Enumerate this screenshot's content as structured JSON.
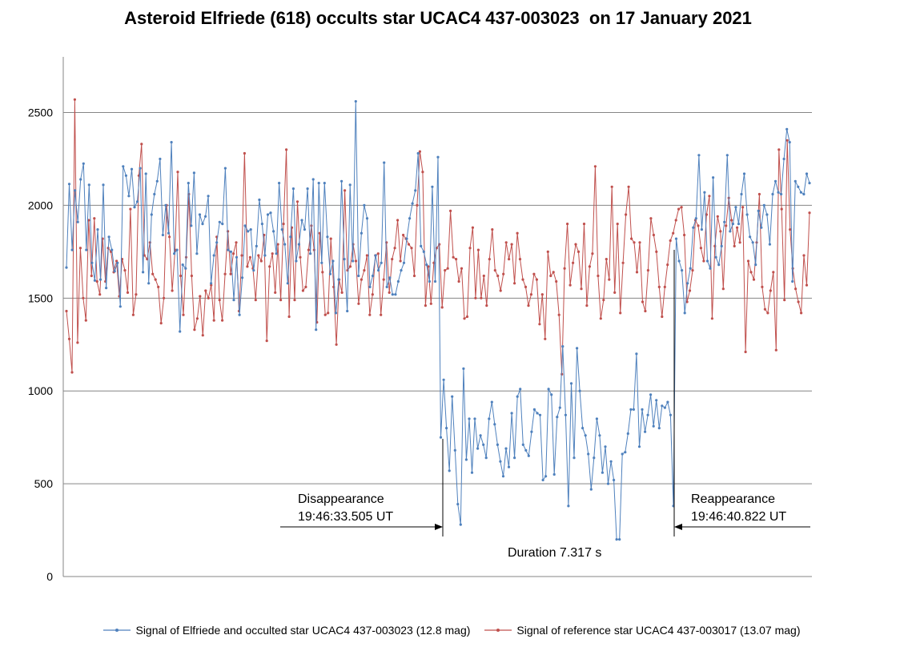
{
  "chart_data": {
    "type": "line",
    "title": "Asteroid Elfriede (618) occults star UCAC4 437-003023  on 17 January 2021",
    "xlabel": "",
    "ylabel": "",
    "ylim": [
      0,
      2800
    ],
    "yticks": [
      "0",
      "500",
      "1000",
      "1500",
      "2000",
      "2500"
    ],
    "grid": true,
    "legend_position": "bottom",
    "series": [
      {
        "name": "Signal of Elfriede and occulted star UCAC4 437-003023 (12.8 mag)",
        "color": "#4f81bd",
        "values": [
          1665,
          2115,
          1760,
          2080,
          1910,
          2140,
          2225,
          1760,
          2110,
          1690,
          1595,
          1870,
          1600,
          2110,
          1555,
          1830,
          1760,
          1645,
          1690,
          1455,
          2210,
          2160,
          2050,
          2195,
          1990,
          2020,
          2200,
          1640,
          2170,
          1580,
          1950,
          2060,
          2130,
          2250,
          1840,
          2000,
          1850,
          2340,
          1740,
          1760,
          1320,
          1680,
          1660,
          2120,
          1890,
          2175,
          1740,
          1950,
          1900,
          1940,
          2050,
          1580,
          1730,
          1800,
          1910,
          1900,
          2200,
          1760,
          1750,
          1490,
          1720,
          1410,
          1610,
          1890,
          1860,
          1870,
          1650,
          1780,
          2030,
          1900,
          1730,
          1950,
          1960,
          1860,
          1740,
          2120,
          1870,
          1790,
          1580,
          1830,
          2090,
          1700,
          1790,
          1920,
          1870,
          2090,
          1740,
          2140,
          1330,
          2120,
          1690,
          2120,
          1830,
          1630,
          1700,
          1420,
          1600,
          2130,
          1710,
          1430,
          2110,
          1700,
          2560,
          1620,
          1850,
          2000,
          1930,
          1560,
          1620,
          1730,
          1650,
          1690,
          2230,
          1560,
          1610,
          1520,
          1520,
          1590,
          1650,
          1690,
          1820,
          1930,
          2010,
          2080,
          2280,
          1780,
          1750,
          1680,
          1590,
          2100,
          1590,
          2260,
          750,
          1060,
          800,
          570,
          970,
          680,
          390,
          280,
          1120,
          630,
          850,
          560,
          850,
          690,
          760,
          710,
          640,
          850,
          940,
          820,
          710,
          620,
          540,
          690,
          590,
          880,
          640,
          970,
          1010,
          710,
          680,
          650,
          780,
          900,
          880,
          870,
          520,
          540,
          1010,
          980,
          550,
          860,
          910,
          1240,
          870,
          380,
          1040,
          640,
          1230,
          1000,
          800,
          760,
          660,
          470,
          640,
          850,
          760,
          560,
          700,
          500,
          620,
          520,
          200,
          200,
          660,
          670,
          770,
          900,
          900,
          1200,
          700,
          900,
          780,
          870,
          980,
          810,
          950,
          800,
          920,
          910,
          940,
          870,
          380,
          1820,
          1700,
          1650,
          1420,
          1580,
          1660,
          1880,
          1930,
          2270,
          1870,
          2070,
          1700,
          1660,
          2150,
          1720,
          1680,
          1780,
          1910,
          2270,
          1860,
          1900,
          1990,
          1900,
          2060,
          2170,
          1950,
          1830,
          1800,
          1680,
          1970,
          1880,
          2000,
          1950,
          1790,
          2060,
          2130,
          2070,
          2060,
          2250,
          2410,
          2340,
          1590,
          2130,
          2100,
          2070,
          2060,
          2170,
          2120
        ]
      },
      {
        "name": "Signal of reference star UCAC4 437-003017 (13.07 mag)",
        "color": "#c0504d",
        "values": [
          1430,
          1280,
          1100,
          2570,
          1260,
          1770,
          1500,
          1380,
          1920,
          1620,
          1930,
          1590,
          1520,
          1820,
          1590,
          1770,
          1750,
          1640,
          1700,
          1510,
          1710,
          1650,
          1530,
          1980,
          1410,
          1520,
          2160,
          2330,
          1730,
          1710,
          1800,
          1630,
          1600,
          1560,
          1365,
          1500,
          2000,
          1830,
          1540,
          1760,
          2180,
          1620,
          1410,
          1720,
          2060,
          1620,
          1330,
          1390,
          1510,
          1300,
          1540,
          1500,
          1570,
          1380,
          1830,
          1490,
          1380,
          1630,
          1860,
          1630,
          1740,
          1800,
          1430,
          1730,
          2280,
          1670,
          1720,
          1660,
          1490,
          1730,
          1700,
          1840,
          1270,
          1670,
          1740,
          1530,
          1790,
          1490,
          1900,
          2300,
          1400,
          1880,
          1490,
          2020,
          1720,
          1540,
          1560,
          1760,
          1890,
          1760,
          1370,
          1850,
          1640,
          1410,
          1420,
          1820,
          1560,
          1250,
          1600,
          1530,
          2080,
          1650,
          1670,
          1790,
          1700,
          1470,
          1600,
          1650,
          1730,
          1410,
          1520,
          1730,
          1740,
          1410,
          1600,
          1800,
          1530,
          1710,
          1770,
          1920,
          1700,
          1840,
          1820,
          1790,
          1770,
          1620,
          2000,
          2290,
          2180,
          1460,
          1670,
          1470,
          1690,
          1770,
          1790,
          1450,
          1650,
          1660,
          1970,
          1720,
          1710,
          1590,
          1660,
          1390,
          1400,
          1770,
          1880,
          1500,
          1760,
          1500,
          1620,
          1460,
          1710,
          1870,
          1650,
          1620,
          1540,
          1630,
          1800,
          1710,
          1790,
          1580,
          1850,
          1710,
          1600,
          1560,
          1460,
          1520,
          1630,
          1600,
          1360,
          1520,
          1280,
          1750,
          1620,
          1640,
          1590,
          1410,
          1090,
          1660,
          1900,
          1570,
          1690,
          1790,
          1750,
          1550,
          1900,
          1460,
          1670,
          1740,
          2210,
          1620,
          1390,
          1490,
          1710,
          1600,
          2100,
          1530,
          1900,
          1420,
          1690,
          1950,
          2100,
          1820,
          1800,
          1640,
          1800,
          1480,
          1430,
          1650,
          1930,
          1840,
          1750,
          1560,
          1400,
          1560,
          1680,
          1810,
          1850,
          1920,
          1980,
          1990,
          1840,
          1480,
          1540,
          1650,
          1920,
          1890,
          1770,
          1700,
          1950,
          2050,
          1390,
          1780,
          1940,
          1860,
          1550,
          1890,
          2040,
          1920,
          1780,
          1880,
          1800,
          1990,
          1210,
          1700,
          1640,
          1600,
          1800,
          2060,
          1560,
          1440,
          1420,
          1540,
          1640,
          1220,
          2300,
          1980,
          1490,
          2350,
          1870,
          1660,
          1550,
          1480,
          1420,
          1730,
          1570,
          1960
        ]
      }
    ],
    "annotations": [
      {
        "lines": [
          "Disappearance",
          "19:46:33.505  UT"
        ],
        "value": 750
      },
      {
        "lines": [
          "Reappearance",
          "19:46:40.822  UT"
        ],
        "value": 1820
      },
      {
        "lines": [
          "Duration 7.317 s"
        ]
      }
    ]
  }
}
